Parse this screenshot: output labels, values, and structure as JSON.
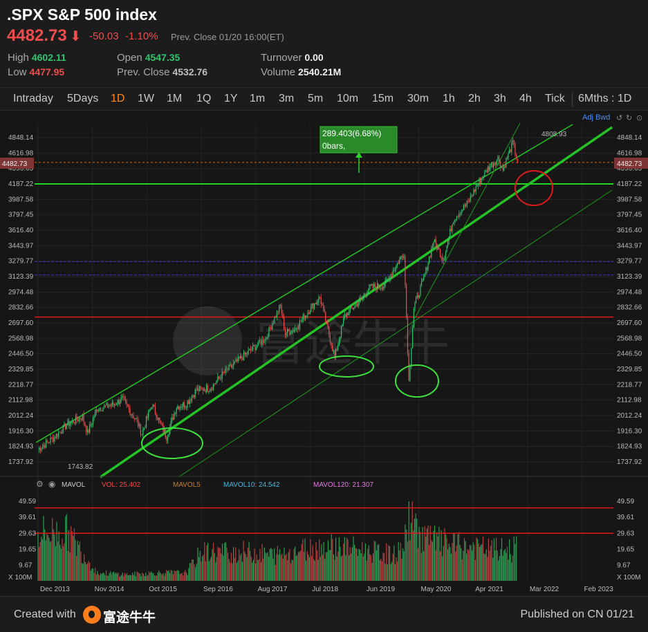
{
  "header": {
    "title": ".SPX S&P 500 index",
    "price": "4482.73",
    "arrow": "⬇",
    "change": "-50.03",
    "change_pct": "-1.10%",
    "prev_close_note": "Prev. Close 01/20 16:00(ET)",
    "stats": {
      "high_label": "High",
      "high": "4602.11",
      "low_label": "Low",
      "low": "4477.95",
      "open_label": "Open",
      "open": "4547.35",
      "prev_close_label": "Prev. Close",
      "prev_close": "4532.76",
      "turnover_label": "Turnover",
      "turnover": "0.00",
      "volume_label": "Volume",
      "volume": "2540.21M"
    }
  },
  "tabs": [
    "Intraday",
    "5Days",
    "1D",
    "1W",
    "1M",
    "1Q",
    "1Y",
    "1m",
    "3m",
    "5m",
    "10m",
    "15m",
    "30m",
    "1h",
    "2h",
    "3h",
    "4h",
    "Tick"
  ],
  "active_tab": "1D",
  "range_label": "6Mths : 1D",
  "adj_label": "Adj Bwd",
  "colors": {
    "up": "#30c56d",
    "down": "#ef4d4d",
    "accent": "#ff8a1d",
    "guide_green": "#22d522",
    "guide_red": "#e01b1b"
  },
  "chart_data": [
    {
      "type": "line",
      "title": "",
      "x_labels": [
        "Dec 2013",
        "Nov 2014",
        "Oct 2015",
        "Sep 2016",
        "Aug 2017",
        "Jul 2018",
        "Jun 2019",
        "May 2020",
        "Apr 2021",
        "Mar 2022",
        "Feb 2023"
      ],
      "y_ticks": [
        "4848.14",
        "4616.98",
        "4396.65",
        "4187.22",
        "3987.58",
        "3797.45",
        "3616.40",
        "3443.97",
        "3279.77",
        "3123.39",
        "2974.48",
        "2832.66",
        "2697.60",
        "2568.98",
        "2446.50",
        "2329.85",
        "2218.77",
        "2112.98",
        "2012.24",
        "1916.30",
        "1824.93",
        "1737.92"
      ],
      "ylim": [
        1737.92,
        4848.14
      ],
      "log_scale": true,
      "current_price_tag": "4482.73",
      "annotations": {
        "high_label": "4808.93",
        "low_label": "1743.82",
        "measure_box": "289.403(6.68%)",
        "measure_bars": "0bars,"
      },
      "horizontal_lines": [
        {
          "value": 4187.22,
          "color": "green"
        },
        {
          "value": 2748,
          "color": "red"
        },
        {
          "value": 3275,
          "color": "blue"
        },
        {
          "value": 3140,
          "color": "blue"
        }
      ],
      "series": [
        {
          "x": [
            "Dec 2013",
            "Mar 2014",
            "Jun 2014",
            "Sep 2014",
            "Oct 2014",
            "Dec 2014",
            "Mar 2015",
            "May 2015",
            "Aug 2015",
            "Sep 2015",
            "Nov 2015",
            "Feb 2016",
            "Apr 2016",
            "Jun 2016",
            "Aug 2016",
            "Nov 2016",
            "Jan 2017",
            "Apr 2017",
            "Jul 2017",
            "Oct 2017",
            "Jan 2018",
            "Feb 2018",
            "Apr 2018",
            "Jul 2018",
            "Sep 2018",
            "Dec 2018",
            "Feb 2019",
            "May 2019",
            "Jul 2019",
            "Oct 2019",
            "Feb 2020",
            "Mar 2020",
            "Apr 2020",
            "Jun 2020",
            "Aug 2020",
            "Oct 2020",
            "Dec 2020",
            "Mar 2021",
            "May 2021",
            "Jul 2021",
            "Sep 2021",
            "Oct 2021",
            "Dec 2021",
            "Jan 2022"
          ],
          "values": [
            1808,
            1872,
            1960,
            2005,
            1905,
            2060,
            2080,
            2120,
            1975,
            1900,
            2085,
            1880,
            2070,
            2090,
            2180,
            2200,
            2280,
            2380,
            2475,
            2570,
            2850,
            2610,
            2650,
            2820,
            2925,
            2420,
            2760,
            2890,
            3015,
            3040,
            3370,
            2240,
            2830,
            3100,
            3500,
            3300,
            3750,
            3950,
            4200,
            4400,
            4540,
            4380,
            4770,
            4482
          ]
        }
      ]
    },
    {
      "type": "bar",
      "title": "",
      "indicator": "MAVOL",
      "legend": {
        "vol": "VOL: 25.402",
        "mavol5": "MAVOL5",
        "mavol10": "MAVOL10: 24.542",
        "mavol120": "MAVOL120: 21.307"
      },
      "y_ticks": [
        "49.59",
        "39.61",
        "29.63",
        "19.65",
        "9.67"
      ],
      "unit_label": "X 100M",
      "ylim": [
        0,
        49.59
      ],
      "horizontal_lines": [
        45.5,
        29.63
      ],
      "series": [
        {
          "x": [
            "Dec 2013",
            "Jun 2014",
            "Dec 2014",
            "Jun 2015",
            "Dec 2015",
            "Jun 2016",
            "Sep 2016",
            "Jun 2017",
            "Dec 2017",
            "Jun 2018",
            "Dec 2018",
            "Jun 2019",
            "Dec 2019",
            "Feb 2020",
            "Mar 2020",
            "Jun 2020",
            "Dec 2020",
            "Jun 2021",
            "Dec 2021",
            "Jan 2022"
          ],
          "values": [
            30,
            30,
            5,
            4,
            5,
            5,
            18,
            18,
            16,
            20,
            22,
            19,
            16,
            21,
            40,
            27,
            22,
            20,
            19,
            25.4
          ]
        }
      ]
    }
  ],
  "footer": {
    "created_with": "Created with",
    "brand": "富途牛牛",
    "published": "Published on CN 01/21"
  }
}
